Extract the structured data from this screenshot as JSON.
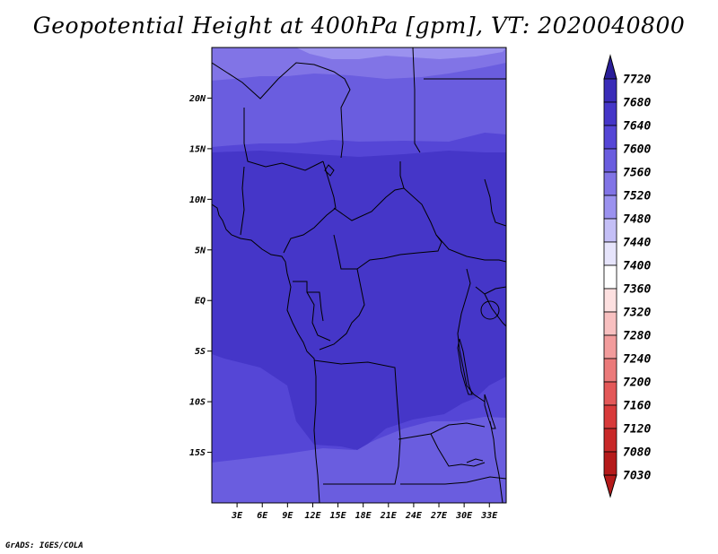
{
  "title": "Geopotential Height at 400hPa [gpm], VT: 2020040800",
  "credit": "GrADS: IGES/COLA",
  "map": {
    "lon_range": [
      0,
      35
    ],
    "lat_range": [
      -20,
      25
    ],
    "lat_ticks": [
      {
        "value": 20,
        "label": "20N"
      },
      {
        "value": 15,
        "label": "15N"
      },
      {
        "value": 10,
        "label": "10N"
      },
      {
        "value": 5,
        "label": "5N"
      },
      {
        "value": 0,
        "label": "EQ"
      },
      {
        "value": -5,
        "label": "5S"
      },
      {
        "value": -10,
        "label": "10S"
      },
      {
        "value": -15,
        "label": "15S"
      }
    ],
    "lon_ticks": [
      {
        "value": 3,
        "label": "3E"
      },
      {
        "value": 6,
        "label": "6E"
      },
      {
        "value": 9,
        "label": "9E"
      },
      {
        "value": 12,
        "label": "12E"
      },
      {
        "value": 15,
        "label": "15E"
      },
      {
        "value": 18,
        "label": "18E"
      },
      {
        "value": 21,
        "label": "21E"
      },
      {
        "value": 24,
        "label": "24E"
      },
      {
        "value": 27,
        "label": "27E"
      },
      {
        "value": 30,
        "label": "30E"
      },
      {
        "value": 33,
        "label": "33E"
      }
    ],
    "colors": {
      "band_7640_7680": "#4536c8",
      "band_7600_7640": "#5546d6",
      "band_7560_7600": "#6a5ddf",
      "band_7520_7560": "#8174e6",
      "band_7480_7520": "#9b92ef",
      "border": "#000000"
    }
  },
  "colorbar": {
    "labels": [
      "7720",
      "7680",
      "7640",
      "7600",
      "7560",
      "7520",
      "7480",
      "7440",
      "7400",
      "7360",
      "7320",
      "7280",
      "7240",
      "7200",
      "7160",
      "7120",
      "7080",
      "7030"
    ],
    "colors": [
      "#2a1e99",
      "#3a2cb8",
      "#4536c8",
      "#5546d6",
      "#6a5ddf",
      "#8174e6",
      "#9b92ef",
      "#c4bff6",
      "#e6e4fb",
      "#ffffff",
      "#fde0e0",
      "#f8c0c0",
      "#f29c9c",
      "#eb7a7a",
      "#e35858",
      "#d83a3a",
      "#c82828",
      "#b51a1a"
    ]
  }
}
